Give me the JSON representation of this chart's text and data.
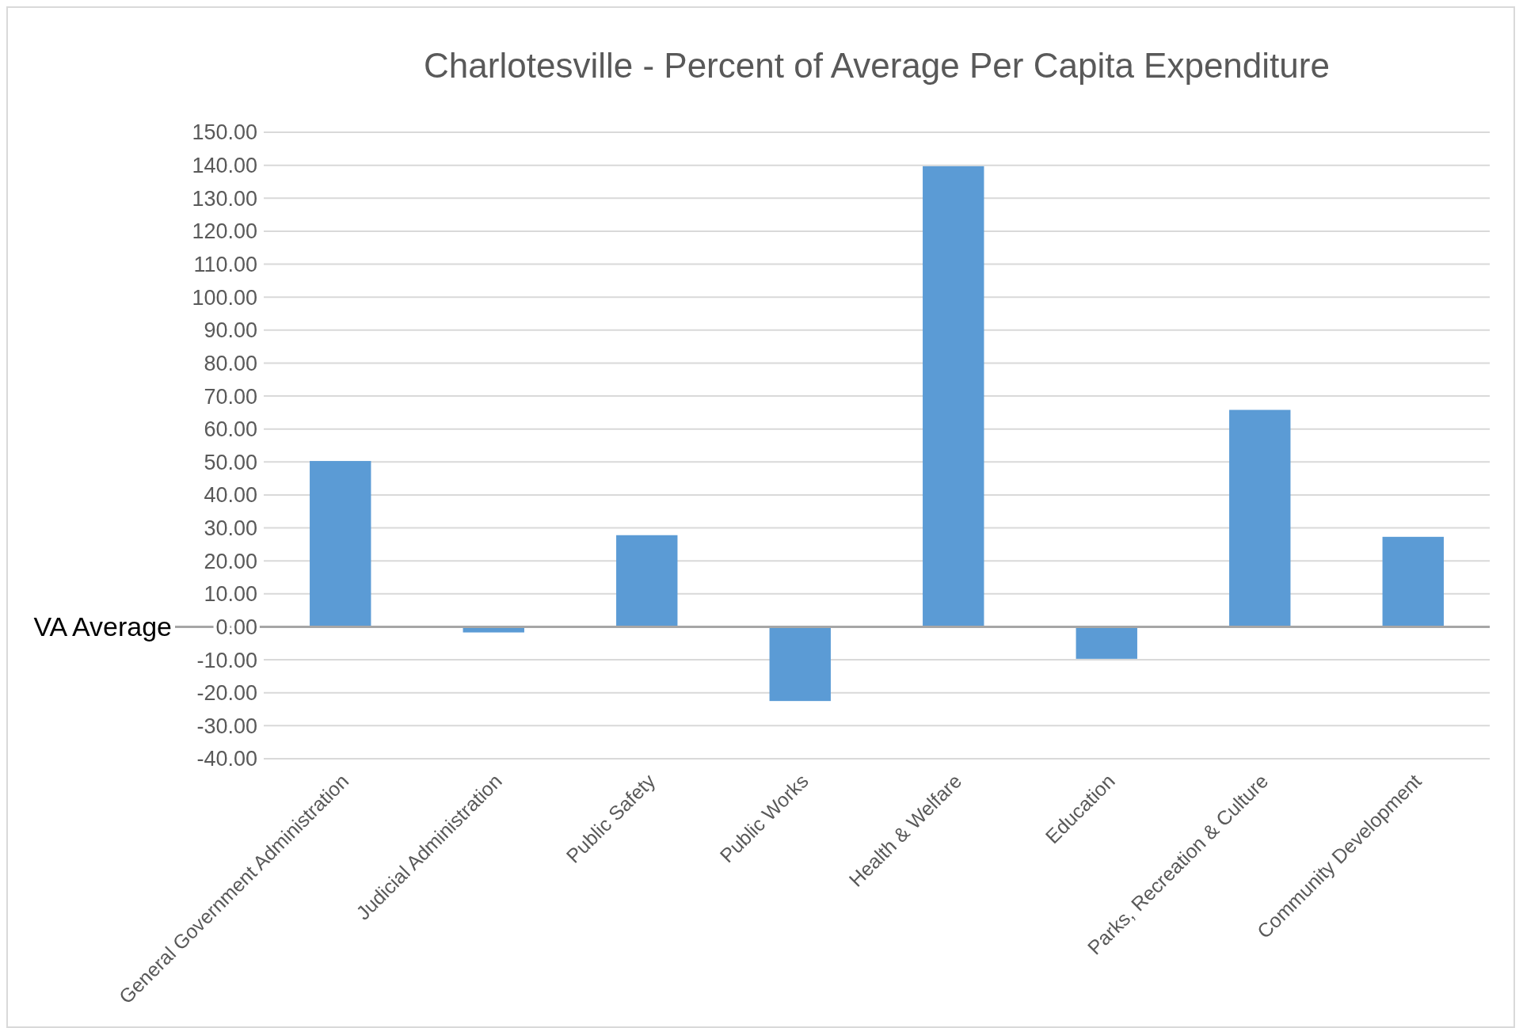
{
  "chart_data": {
    "type": "bar",
    "title": "Charlotesville - Percent of Average Per Capita Expenditure",
    "categories": [
      "General Government Administration",
      "Judicial Administration",
      "Public Safety",
      "Public Works",
      "Health & Welfare",
      "Education",
      "Parks, Recreation & Culture",
      "Community Development"
    ],
    "values": [
      50.3,
      -1.7,
      27.8,
      -22.5,
      139.7,
      -9.7,
      65.8,
      27.3
    ],
    "color": "#5b9bd5",
    "ylim": [
      -40,
      150
    ],
    "yticks": [
      {
        "value": -40,
        "label": "-40.00"
      },
      {
        "value": -30,
        "label": "-30.00"
      },
      {
        "value": -20,
        "label": "-20.00"
      },
      {
        "value": -10,
        "label": "-10.00"
      },
      {
        "value": 0,
        "label": "0.00"
      },
      {
        "value": 10,
        "label": "10.00"
      },
      {
        "value": 20,
        "label": "20.00"
      },
      {
        "value": 30,
        "label": "30.00"
      },
      {
        "value": 40,
        "label": "40.00"
      },
      {
        "value": 50,
        "label": "50.00"
      },
      {
        "value": 60,
        "label": "60.00"
      },
      {
        "value": 70,
        "label": "70.00"
      },
      {
        "value": 80,
        "label": "80.00"
      },
      {
        "value": 90,
        "label": "90.00"
      },
      {
        "value": 100,
        "label": "100.00"
      },
      {
        "value": 110,
        "label": "110.00"
      },
      {
        "value": 120,
        "label": "120.00"
      },
      {
        "value": 130,
        "label": "130.00"
      },
      {
        "value": 140,
        "label": "140.00"
      },
      {
        "value": 150,
        "label": "150.00"
      }
    ],
    "grid": "y",
    "ref_lines": [
      {
        "axis": "y",
        "value": 0,
        "label": "VA Average"
      }
    ]
  }
}
